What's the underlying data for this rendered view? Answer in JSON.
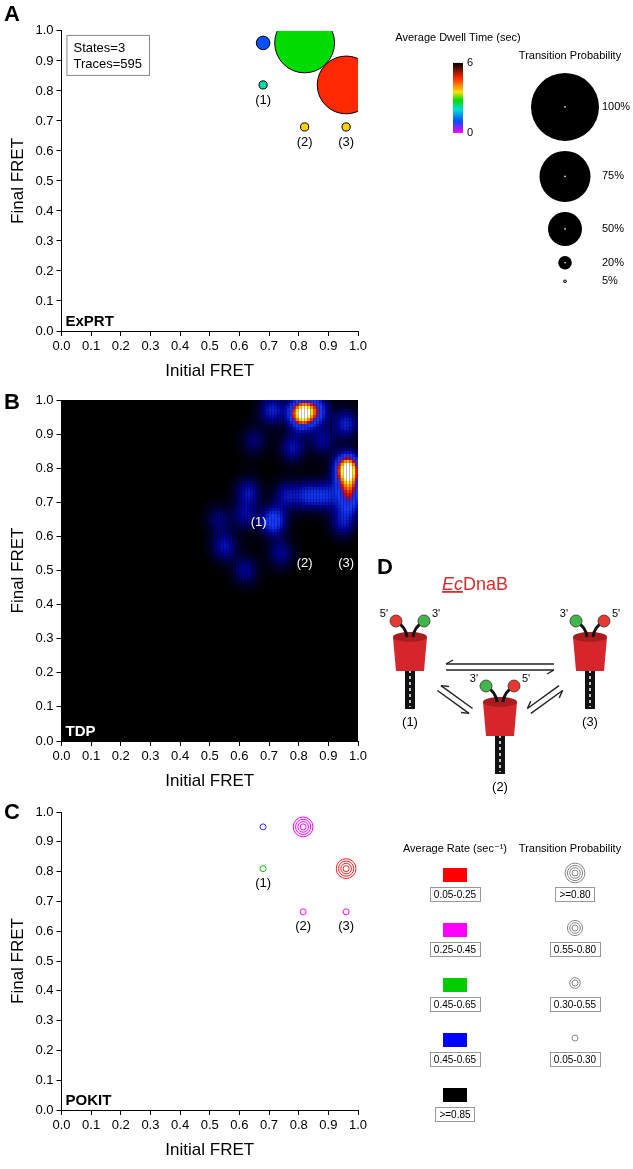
{
  "chart_data": [
    {
      "panel": "A",
      "type": "bubble",
      "title": "ExPRT",
      "x_label": "Initial FRET",
      "y_label": "Final FRET",
      "xlim": [
        0,
        1
      ],
      "ylim": [
        0,
        1
      ],
      "xticks": [
        {
          "value": 0,
          "label": "0.0"
        },
        0.1,
        0.2,
        0.3,
        0.4,
        0.5,
        0.6,
        0.7,
        0.8,
        0.9,
        {
          "value": 1,
          "label": "1.0"
        }
      ],
      "yticks": [
        {
          "value": 0,
          "label": "0.0"
        },
        0.1,
        0.2,
        0.3,
        0.4,
        0.5,
        0.6,
        0.7,
        0.8,
        0.9,
        {
          "value": 1,
          "label": "1.0"
        }
      ],
      "grid": false,
      "inset": [
        "States=3",
        "Traces=595"
      ],
      "points": [
        {
          "x": 0.68,
          "y": 0.96,
          "dwell_time": 1.0,
          "probability": 20
        },
        {
          "x": 0.68,
          "y": 0.82,
          "dwell_time": 2.2,
          "probability": 12,
          "label": "(1)"
        },
        {
          "x": 0.82,
          "y": 0.96,
          "dwell_time": 2.8,
          "probability": 88
        },
        {
          "x": 0.82,
          "y": 0.68,
          "dwell_time": 3.6,
          "probability": 12,
          "label": "(2)"
        },
        {
          "x": 0.96,
          "y": 0.82,
          "dwell_time": 4.7,
          "probability": 85
        },
        {
          "x": 0.96,
          "y": 0.68,
          "dwell_time": 3.6,
          "probability": 12,
          "label": "(3)"
        }
      ],
      "color_bar": {
        "title": "Average Dwell Time (sec)",
        "range": [
          0,
          6
        ],
        "ticks": [
          0,
          6
        ]
      },
      "size_legend": {
        "title": "Transition Probability",
        "values": [
          {
            "value": 100,
            "label": "100%"
          },
          {
            "value": 75,
            "label": "75%"
          },
          {
            "value": 50,
            "label": "50%"
          },
          {
            "value": 20,
            "label": "20%"
          },
          {
            "value": 5,
            "label": "5%"
          }
        ]
      }
    },
    {
      "panel": "B",
      "type": "heatmap",
      "title": "TDP",
      "x_label": "Initial FRET",
      "y_label": "Final FRET",
      "xlim": [
        0,
        1
      ],
      "ylim": [
        0,
        1
      ],
      "xticks": [
        {
          "value": 0,
          "label": "0.0"
        },
        0.1,
        0.2,
        0.3,
        0.4,
        0.5,
        0.6,
        0.7,
        0.8,
        0.9,
        {
          "value": 1,
          "label": "1.0"
        }
      ],
      "yticks": [
        {
          "value": 0,
          "label": "0.0"
        },
        0.1,
        0.2,
        0.3,
        0.4,
        0.5,
        0.6,
        0.7,
        0.8,
        0.9,
        {
          "value": 1,
          "label": "1.0"
        }
      ],
      "grid": false,
      "peaks": [
        {
          "x": 0.81,
          "y": 0.96,
          "intensity": 1.0
        },
        {
          "x": 0.86,
          "y": 0.97,
          "intensity": 0.45
        },
        {
          "x": 0.965,
          "y": 0.8,
          "intensity": 1.0
        },
        {
          "x": 0.97,
          "y": 0.75,
          "intensity": 0.5
        },
        {
          "x": 0.71,
          "y": 0.97,
          "intensity": 0.35
        },
        {
          "x": 0.96,
          "y": 0.93,
          "intensity": 0.35
        },
        {
          "x": 0.97,
          "y": 0.7,
          "intensity": 0.4
        },
        {
          "x": 0.89,
          "y": 0.72,
          "intensity": 0.35
        },
        {
          "x": 0.83,
          "y": 0.72,
          "intensity": 0.35
        },
        {
          "x": 0.76,
          "y": 0.72,
          "intensity": 0.3
        },
        {
          "x": 0.715,
          "y": 0.645,
          "intensity": 0.5
        },
        {
          "x": 0.63,
          "y": 0.73,
          "intensity": 0.3
        },
        {
          "x": 0.62,
          "y": 0.66,
          "intensity": 0.25
        },
        {
          "x": 0.55,
          "y": 0.57,
          "intensity": 0.3
        },
        {
          "x": 0.62,
          "y": 0.5,
          "intensity": 0.25
        },
        {
          "x": 0.74,
          "y": 0.55,
          "intensity": 0.25
        },
        {
          "x": 0.53,
          "y": 0.65,
          "intensity": 0.2
        },
        {
          "x": 0.95,
          "y": 0.64,
          "intensity": 0.3
        },
        {
          "x": 0.78,
          "y": 0.86,
          "intensity": 0.3
        },
        {
          "x": 0.88,
          "y": 0.88,
          "intensity": 0.25
        },
        {
          "x": 0.65,
          "y": 0.88,
          "intensity": 0.2
        }
      ],
      "annotations": [
        {
          "text": "(1)",
          "x": 0.665,
          "y": 0.64
        },
        {
          "text": "(2)",
          "x": 0.82,
          "y": 0.52
        },
        {
          "text": "(3)",
          "x": 0.96,
          "y": 0.52
        }
      ]
    },
    {
      "panel": "C",
      "type": "scatter",
      "title": "POKIT",
      "x_label": "Initial FRET",
      "y_label": "Final FRET",
      "xlim": [
        0,
        1
      ],
      "ylim": [
        0,
        1
      ],
      "xticks": [
        {
          "value": 0,
          "label": "0.0"
        },
        0.1,
        0.2,
        0.3,
        0.4,
        0.5,
        0.6,
        0.7,
        0.8,
        0.9,
        {
          "value": 1,
          "label": "1.0"
        }
      ],
      "yticks": [
        {
          "value": 0,
          "label": "0.0"
        },
        0.1,
        0.2,
        0.3,
        0.4,
        0.5,
        0.6,
        0.7,
        0.8,
        0.9,
        {
          "value": 1,
          "label": "1.0"
        }
      ],
      "grid": false,
      "points": [
        {
          "x": 0.68,
          "y": 0.95,
          "color": "#3030ff",
          "probability": 0.2
        },
        {
          "x": 0.68,
          "y": 0.81,
          "color": "#00c000",
          "probability": 0.12,
          "label": "(1)"
        },
        {
          "x": 0.815,
          "y": 0.95,
          "color": "#ff00ff",
          "probability": 0.88
        },
        {
          "x": 0.815,
          "y": 0.665,
          "color": "#ff00ff",
          "probability": 0.12,
          "label": "(2)"
        },
        {
          "x": 0.96,
          "y": 0.81,
          "color": "#ff2020",
          "probability": 0.85
        },
        {
          "x": 0.96,
          "y": 0.665,
          "color": "#ff00ff",
          "probability": 0.12,
          "label": "(3)"
        }
      ],
      "color_legend": {
        "title": "Average Rate (sec⁻¹)",
        "entries": [
          {
            "color": "#ff0000",
            "label": "0.05-0.25"
          },
          {
            "color": "#ff00ff",
            "label": "0.25-0.45"
          },
          {
            "color": "#00cc00",
            "label": "0.45-0.65"
          },
          {
            "color": "#0000ff",
            "label": "0.45-0.65"
          },
          {
            "color": "#000000",
            "label": ">=0.85"
          }
        ]
      },
      "size_legend": {
        "title": "Transition Probability",
        "bins": [
          {
            "label": ">=0.80",
            "min": 0.8
          },
          {
            "label": "0.55-0.80",
            "min": 0.55,
            "max": 0.8
          },
          {
            "label": "0.30-0.55",
            "min": 0.3,
            "max": 0.55
          },
          {
            "label": "0.05-0.30",
            "min": 0.05,
            "max": 0.3
          }
        ]
      }
    }
  ],
  "diagram": {
    "panel": "D",
    "title": [
      "Ec",
      "DnaB"
    ],
    "nodes": [
      {
        "label": "(1)",
        "ends": [
          {
            "label": "5'",
            "color": "#e53935"
          },
          {
            "label": "3'",
            "color": "#43b649"
          }
        ]
      },
      {
        "label": "(2)",
        "ends": [
          {
            "label": "3'",
            "color": "#43b649"
          },
          {
            "label": "5'",
            "color": "#e53935"
          }
        ]
      },
      {
        "label": "(3)",
        "ends": [
          {
            "label": "3'",
            "color": "#43b649"
          },
          {
            "label": "5'",
            "color": "#e53935"
          }
        ]
      }
    ],
    "edges": [
      [
        "(1)",
        "(3)"
      ],
      [
        "(1)",
        "(2)"
      ],
      [
        "(2)",
        "(3)"
      ]
    ]
  }
}
